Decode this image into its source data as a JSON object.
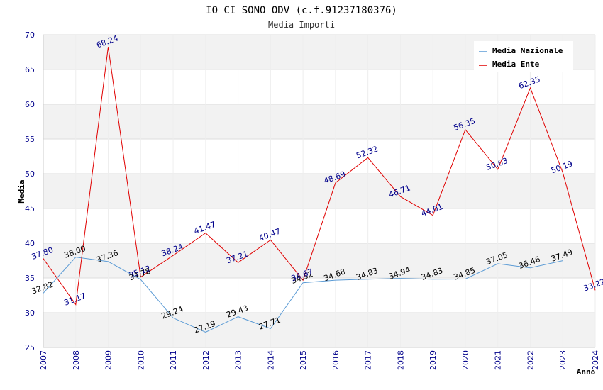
{
  "chart_data": {
    "type": "line",
    "title": "IO CI SONO ODV (c.f.91237180376)",
    "subtitle": "Media Importi",
    "xlabel": "Anno",
    "ylabel": "Media",
    "ylim": [
      25,
      70
    ],
    "yticks": [
      25,
      30,
      35,
      40,
      45,
      50,
      55,
      60,
      65,
      70
    ],
    "x": [
      "2007",
      "2008",
      "2009",
      "2010",
      "2011",
      "2012",
      "2013",
      "2014",
      "2015",
      "2016",
      "2017",
      "2018",
      "2019",
      "2020",
      "2021",
      "2022",
      "2023",
      "2024"
    ],
    "grid": true,
    "legend_position": "top-right",
    "series": [
      {
        "name": "Media Nazionale",
        "color": "#5b9bd5",
        "values": [
          32.82,
          38.0,
          37.36,
          34.78,
          29.24,
          27.19,
          29.43,
          27.71,
          34.32,
          34.68,
          34.83,
          34.94,
          34.83,
          34.85,
          37.05,
          36.46,
          37.49,
          null
        ],
        "labels": [
          "32.82",
          "38.00",
          "37.36",
          "34.78",
          "29.24",
          "27.19",
          "29.43",
          "27.71",
          "34.32",
          "34.68",
          "34.83",
          "34.94",
          "34.83",
          "34.85",
          "37.05",
          "36.46",
          "37.49",
          ""
        ]
      },
      {
        "name": "Media Ente",
        "color": "#e00000",
        "values": [
          37.8,
          31.17,
          68.24,
          35.12,
          38.24,
          41.47,
          37.21,
          40.47,
          34.67,
          48.69,
          52.32,
          46.71,
          44.01,
          56.35,
          50.63,
          62.35,
          50.19,
          33.22
        ],
        "labels": [
          "37.80",
          "31.17",
          "68.24",
          "35.12",
          "38.24",
          "41.47",
          "37.21",
          "40.47",
          "34.67",
          "48.69",
          "52.32",
          "46.71",
          "44.01",
          "56.35",
          "50.63",
          "62.35",
          "50.19",
          "33.22"
        ]
      }
    ]
  }
}
